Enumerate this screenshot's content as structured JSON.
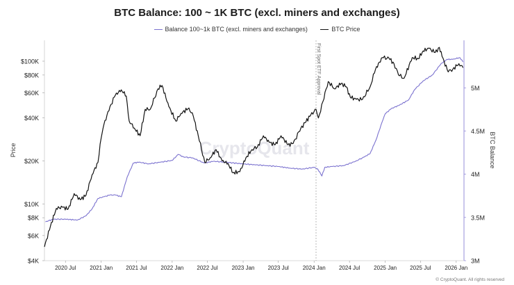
{
  "chart_data": {
    "type": "line",
    "title": "BTC Balance: 100 ~ 1K BTC (excl. miners and exchanges)",
    "ylabel_left": "Price",
    "ylabel_right": "BTC Balance",
    "left_axis_scale": "log",
    "left_axis_range": [
      4000,
      140000
    ],
    "left_ticks": [
      {
        "label": "$100K",
        "value": 100000
      },
      {
        "label": "$80K",
        "value": 80000
      },
      {
        "label": "$60K",
        "value": 60000
      },
      {
        "label": "$40K",
        "value": 40000
      },
      {
        "label": "$20K",
        "value": 20000
      },
      {
        "label": "$10K",
        "value": 10000
      },
      {
        "label": "$8K",
        "value": 8000
      },
      {
        "label": "$6K",
        "value": 6000
      },
      {
        "label": "$4K",
        "value": 4000
      }
    ],
    "right_axis_range": [
      3000000,
      5550000
    ],
    "right_ticks": [
      {
        "label": "5M",
        "value": 5000000
      },
      {
        "label": "4.5M",
        "value": 4500000
      },
      {
        "label": "4M",
        "value": 4000000
      },
      {
        "label": "3.5M",
        "value": 3500000
      },
      {
        "label": "3M",
        "value": 3000000
      }
    ],
    "x_range": [
      "2020-03-15",
      "2026-02-10"
    ],
    "x_ticks": [
      {
        "label": "2020 Jul",
        "date": "2020-07-01"
      },
      {
        "label": "2021 Jan",
        "date": "2021-01-01"
      },
      {
        "label": "2021 Jul",
        "date": "2021-07-01"
      },
      {
        "label": "2022 Jan",
        "date": "2022-01-01"
      },
      {
        "label": "2022 Jul",
        "date": "2022-07-01"
      },
      {
        "label": "2023 Jan",
        "date": "2023-01-01"
      },
      {
        "label": "2023 Jul",
        "date": "2023-07-01"
      },
      {
        "label": "2024 Jan",
        "date": "2024-01-01"
      },
      {
        "label": "2024 Jul",
        "date": "2024-07-01"
      },
      {
        "label": "2025 Jan",
        "date": "2025-01-01"
      },
      {
        "label": "2025 Jul",
        "date": "2025-07-01"
      },
      {
        "label": "2026 Jan",
        "date": "2026-01-01"
      }
    ],
    "grid": false,
    "legend_position": "top-center",
    "annotations": [
      {
        "text": "First Spot ETF Approval",
        "date": "2024-01-11"
      }
    ],
    "watermark": "CryptoQuant",
    "series": [
      {
        "name": "Balance 100~1k BTC (excl. miners and exchanges)",
        "axis": "right",
        "color": "#7b72cf",
        "points": [
          [
            "2020-03-20",
            3450000
          ],
          [
            "2020-05-01",
            3480000
          ],
          [
            "2020-07-01",
            3480000
          ],
          [
            "2020-09-01",
            3470000
          ],
          [
            "2020-10-15",
            3520000
          ],
          [
            "2020-11-15",
            3600000
          ],
          [
            "2020-12-15",
            3720000
          ],
          [
            "2021-01-15",
            3740000
          ],
          [
            "2021-02-15",
            3760000
          ],
          [
            "2021-03-15",
            3760000
          ],
          [
            "2021-04-15",
            3740000
          ],
          [
            "2021-05-15",
            3970000
          ],
          [
            "2021-06-15",
            4130000
          ],
          [
            "2021-07-15",
            4140000
          ],
          [
            "2021-09-01",
            4120000
          ],
          [
            "2021-11-01",
            4140000
          ],
          [
            "2022-01-01",
            4160000
          ],
          [
            "2022-02-01",
            4230000
          ],
          [
            "2022-03-01",
            4200000
          ],
          [
            "2022-04-15",
            4190000
          ],
          [
            "2022-06-15",
            4130000
          ],
          [
            "2022-08-01",
            4150000
          ],
          [
            "2022-10-01",
            4140000
          ],
          [
            "2023-01-01",
            4120000
          ],
          [
            "2023-03-01",
            4110000
          ],
          [
            "2023-05-01",
            4100000
          ],
          [
            "2023-07-01",
            4090000
          ],
          [
            "2023-09-01",
            4070000
          ],
          [
            "2023-11-01",
            4060000
          ],
          [
            "2024-01-01",
            4080000
          ],
          [
            "2024-01-20",
            4060000
          ],
          [
            "2024-02-10",
            3980000
          ],
          [
            "2024-02-25",
            4080000
          ],
          [
            "2024-04-01",
            4090000
          ],
          [
            "2024-06-01",
            4100000
          ],
          [
            "2024-08-01",
            4150000
          ],
          [
            "2024-09-15",
            4200000
          ],
          [
            "2024-10-15",
            4240000
          ],
          [
            "2024-11-15",
            4400000
          ],
          [
            "2024-12-15",
            4600000
          ],
          [
            "2025-01-01",
            4700000
          ],
          [
            "2025-02-01",
            4760000
          ],
          [
            "2025-03-15",
            4800000
          ],
          [
            "2025-05-01",
            4860000
          ],
          [
            "2025-06-01",
            4980000
          ],
          [
            "2025-07-15",
            5080000
          ],
          [
            "2025-09-01",
            5150000
          ],
          [
            "2025-10-15",
            5280000
          ],
          [
            "2025-11-15",
            5330000
          ],
          [
            "2025-12-15",
            5330000
          ],
          [
            "2026-01-20",
            5350000
          ],
          [
            "2026-02-05",
            5300000
          ]
        ]
      },
      {
        "name": "BTC Price",
        "axis": "left",
        "color": "#111111",
        "points": [
          [
            "2020-03-15",
            5000
          ],
          [
            "2020-04-15",
            7000
          ],
          [
            "2020-05-15",
            9300
          ],
          [
            "2020-06-15",
            9500
          ],
          [
            "2020-07-15",
            9200
          ],
          [
            "2020-08-15",
            11800
          ],
          [
            "2020-09-15",
            10700
          ],
          [
            "2020-10-15",
            11500
          ],
          [
            "2020-11-15",
            16000
          ],
          [
            "2020-12-15",
            19500
          ],
          [
            "2021-01-01",
            29000
          ],
          [
            "2021-01-15",
            36000
          ],
          [
            "2021-02-15",
            48000
          ],
          [
            "2021-03-15",
            58000
          ],
          [
            "2021-04-14",
            63000
          ],
          [
            "2021-05-10",
            57000
          ],
          [
            "2021-05-25",
            38000
          ],
          [
            "2021-06-20",
            34000
          ],
          [
            "2021-07-20",
            30000
          ],
          [
            "2021-08-15",
            46000
          ],
          [
            "2021-09-10",
            46000
          ],
          [
            "2021-10-20",
            64000
          ],
          [
            "2021-11-10",
            67500
          ],
          [
            "2021-12-15",
            48000
          ],
          [
            "2022-01-20",
            38000
          ],
          [
            "2022-02-15",
            43000
          ],
          [
            "2022-03-28",
            47000
          ],
          [
            "2022-04-20",
            41000
          ],
          [
            "2022-05-15",
            30000
          ],
          [
            "2022-06-18",
            19500
          ],
          [
            "2022-07-15",
            21000
          ],
          [
            "2022-08-15",
            24000
          ],
          [
            "2022-09-15",
            20000
          ],
          [
            "2022-10-15",
            19200
          ],
          [
            "2022-11-10",
            16500
          ],
          [
            "2022-12-15",
            16800
          ],
          [
            "2023-01-15",
            21000
          ],
          [
            "2023-02-15",
            24000
          ],
          [
            "2023-03-15",
            25000
          ],
          [
            "2023-04-15",
            30000
          ],
          [
            "2023-05-15",
            27000
          ],
          [
            "2023-06-15",
            26000
          ],
          [
            "2023-07-15",
            30000
          ],
          [
            "2023-08-20",
            26000
          ],
          [
            "2023-09-15",
            26500
          ],
          [
            "2023-10-25",
            34000
          ],
          [
            "2023-11-15",
            37000
          ],
          [
            "2023-12-15",
            42000
          ],
          [
            "2024-01-11",
            46000
          ],
          [
            "2024-01-23",
            40000
          ],
          [
            "2024-02-15",
            52000
          ],
          [
            "2024-03-14",
            72000
          ],
          [
            "2024-04-15",
            64000
          ],
          [
            "2024-05-20",
            70000
          ],
          [
            "2024-06-15",
            66000
          ],
          [
            "2024-07-05",
            56000
          ],
          [
            "2024-08-05",
            54000
          ],
          [
            "2024-09-06",
            54000
          ],
          [
            "2024-10-15",
            66000
          ],
          [
            "2024-11-12",
            88000
          ],
          [
            "2024-12-17",
            106000
          ],
          [
            "2025-01-20",
            105000
          ],
          [
            "2025-02-15",
            96000
          ],
          [
            "2025-03-10",
            80000
          ],
          [
            "2025-04-08",
            76000
          ],
          [
            "2025-05-20",
            106000
          ],
          [
            "2025-06-20",
            104000
          ],
          [
            "2025-07-15",
            118000
          ],
          [
            "2025-08-14",
            123000
          ],
          [
            "2025-09-15",
            115000
          ],
          [
            "2025-10-06",
            125000
          ],
          [
            "2025-10-20",
            108000
          ],
          [
            "2025-11-21",
            84000
          ],
          [
            "2025-12-15",
            88000
          ],
          [
            "2026-01-15",
            96000
          ],
          [
            "2026-02-05",
            90000
          ]
        ]
      }
    ]
  },
  "footer": "© CryptoQuant. All rights reserved"
}
